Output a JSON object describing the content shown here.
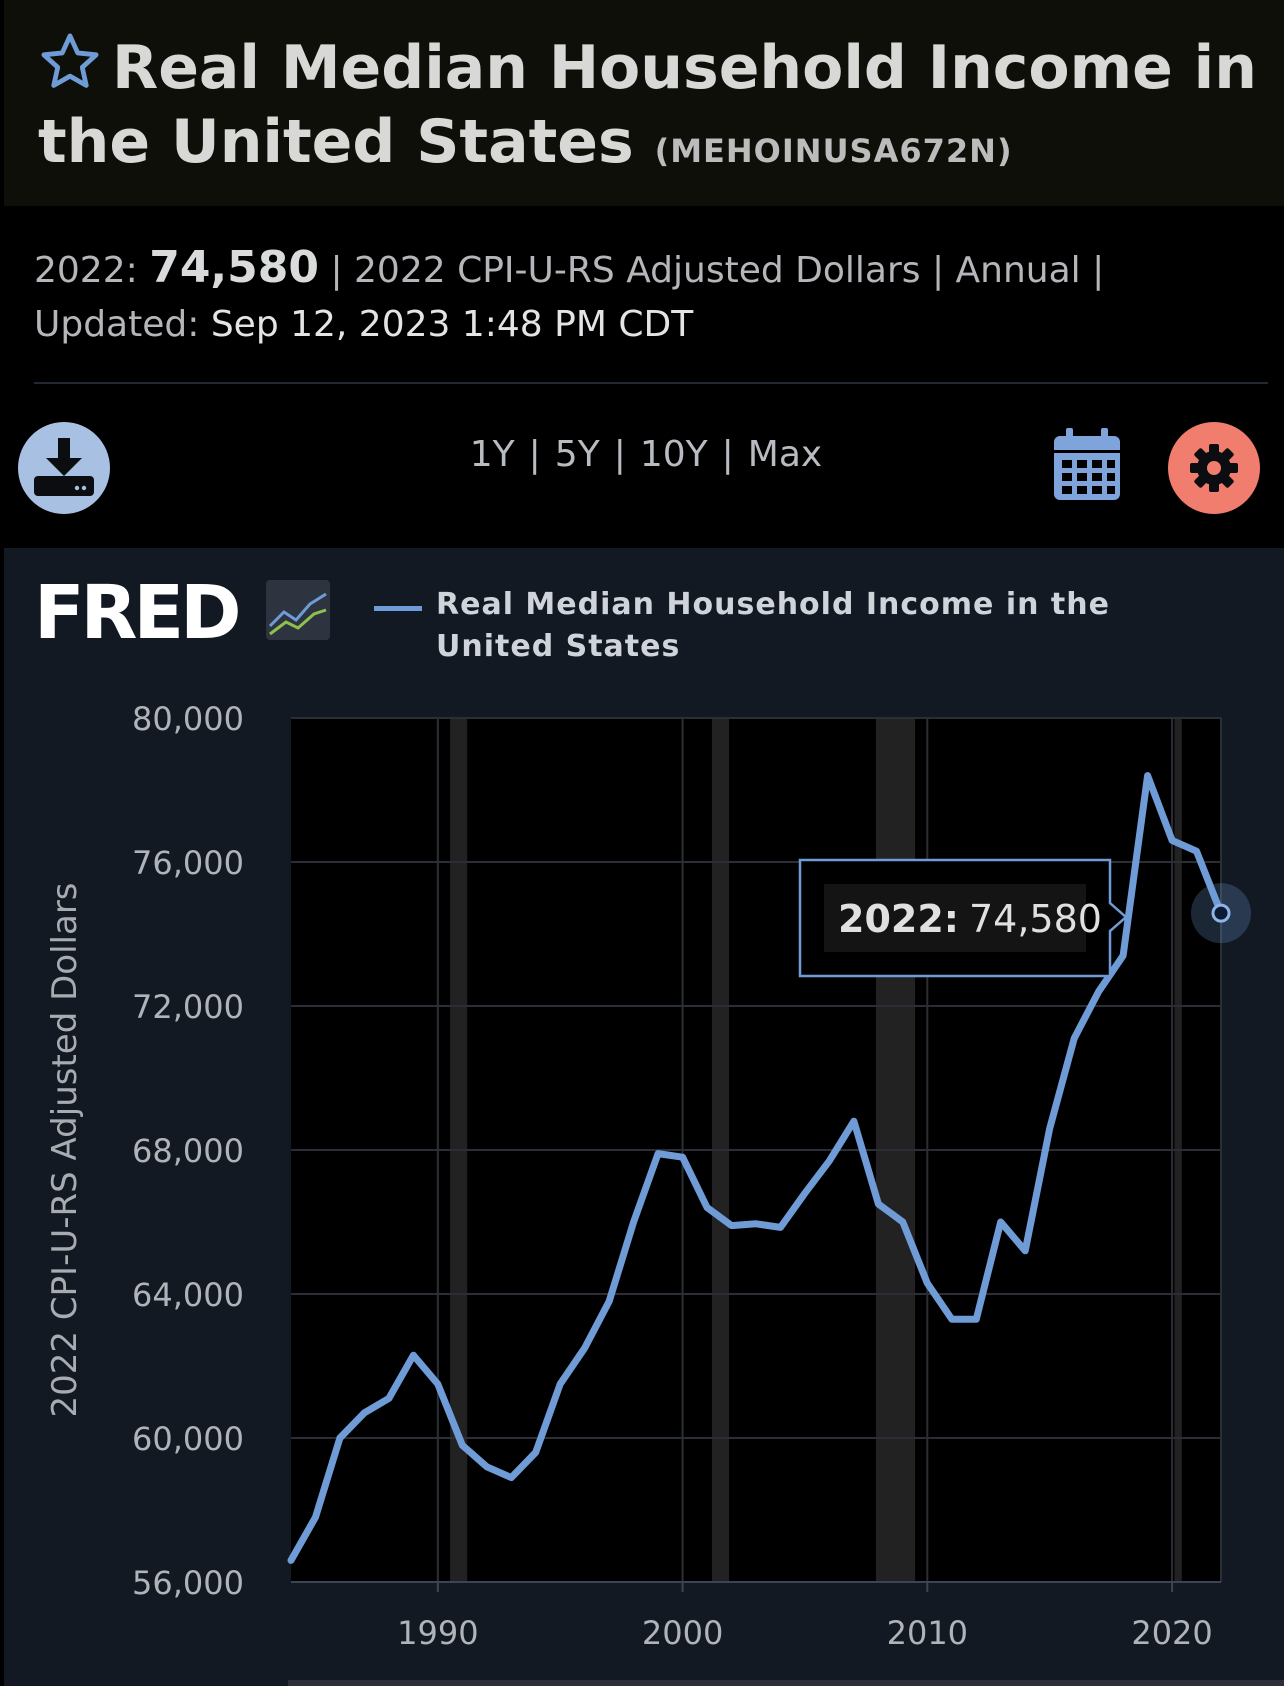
{
  "header": {
    "title": "Real Median Household Income in the United States",
    "series_id": "(MEHOINUSA672N)"
  },
  "meta": {
    "latest_label": "2022:",
    "latest_value": "74,580",
    "line1_rest": "| 2022 CPI-U-RS Adjusted Dollars | Annual |",
    "updated_label": "Updated:",
    "updated_value": "Sep 12, 2023 1:48 PM CDT"
  },
  "toolbar": {
    "ranges": [
      "1Y",
      "5Y",
      "10Y",
      "Max"
    ]
  },
  "legend": {
    "logo_text": "FRED",
    "series_name": "Real Median Household Income in the United States"
  },
  "tooltip": {
    "label": "2022:",
    "value": "74,580"
  },
  "colors": {
    "series": "#6f9bd6",
    "download_button": "#a8c0e2",
    "settings_button": "#f07d6e",
    "recession_shade": "#222222",
    "plot_background": "#000000",
    "panel_background": "#121923"
  },
  "chart_data": {
    "type": "line",
    "title": "Real Median Household Income in the United States",
    "ylabel": "2022 CPI-U-RS Adjusted Dollars",
    "xlabel": "",
    "ylim": [
      56000,
      80000
    ],
    "xlim": [
      1984,
      2022
    ],
    "yticks": [
      56000,
      60000,
      64000,
      68000,
      72000,
      76000,
      80000
    ],
    "ytick_labels": [
      "56,000",
      "60,000",
      "64,000",
      "68,000",
      "72,000",
      "76,000",
      "80,000"
    ],
    "xticks": [
      1990,
      2000,
      2010,
      2020
    ],
    "xtick_labels": [
      "1990",
      "2000",
      "2010",
      "2020"
    ],
    "grid": true,
    "recessions": [
      [
        1990.5,
        1991.2
      ],
      [
        2001.2,
        2001.9
      ],
      [
        2007.9,
        2009.5
      ],
      [
        2020.1,
        2020.4
      ]
    ],
    "series": [
      {
        "name": "Real Median Household Income in the United States",
        "x": [
          1984,
          1985,
          1986,
          1987,
          1988,
          1989,
          1990,
          1991,
          1992,
          1993,
          1994,
          1995,
          1996,
          1997,
          1998,
          1999,
          2000,
          2001,
          2002,
          2003,
          2004,
          2005,
          2006,
          2007,
          2008,
          2009,
          2010,
          2011,
          2012,
          2013,
          2014,
          2015,
          2016,
          2017,
          2018,
          2019,
          2020,
          2021,
          2022
        ],
        "values": [
          56600,
          57800,
          60000,
          60700,
          61100,
          62300,
          61500,
          59800,
          59200,
          58900,
          59600,
          61500,
          62500,
          63800,
          66000,
          67900,
          67800,
          66400,
          65900,
          65950,
          65850,
          66800,
          67700,
          68800,
          66500,
          66000,
          64300,
          63300,
          63300,
          66000,
          65200,
          68600,
          71100,
          72400,
          73400,
          78400,
          76600,
          76300,
          74580
        ]
      }
    ],
    "highlight": {
      "x": 2022,
      "value": 74580,
      "label": "2022: 74,580"
    }
  }
}
